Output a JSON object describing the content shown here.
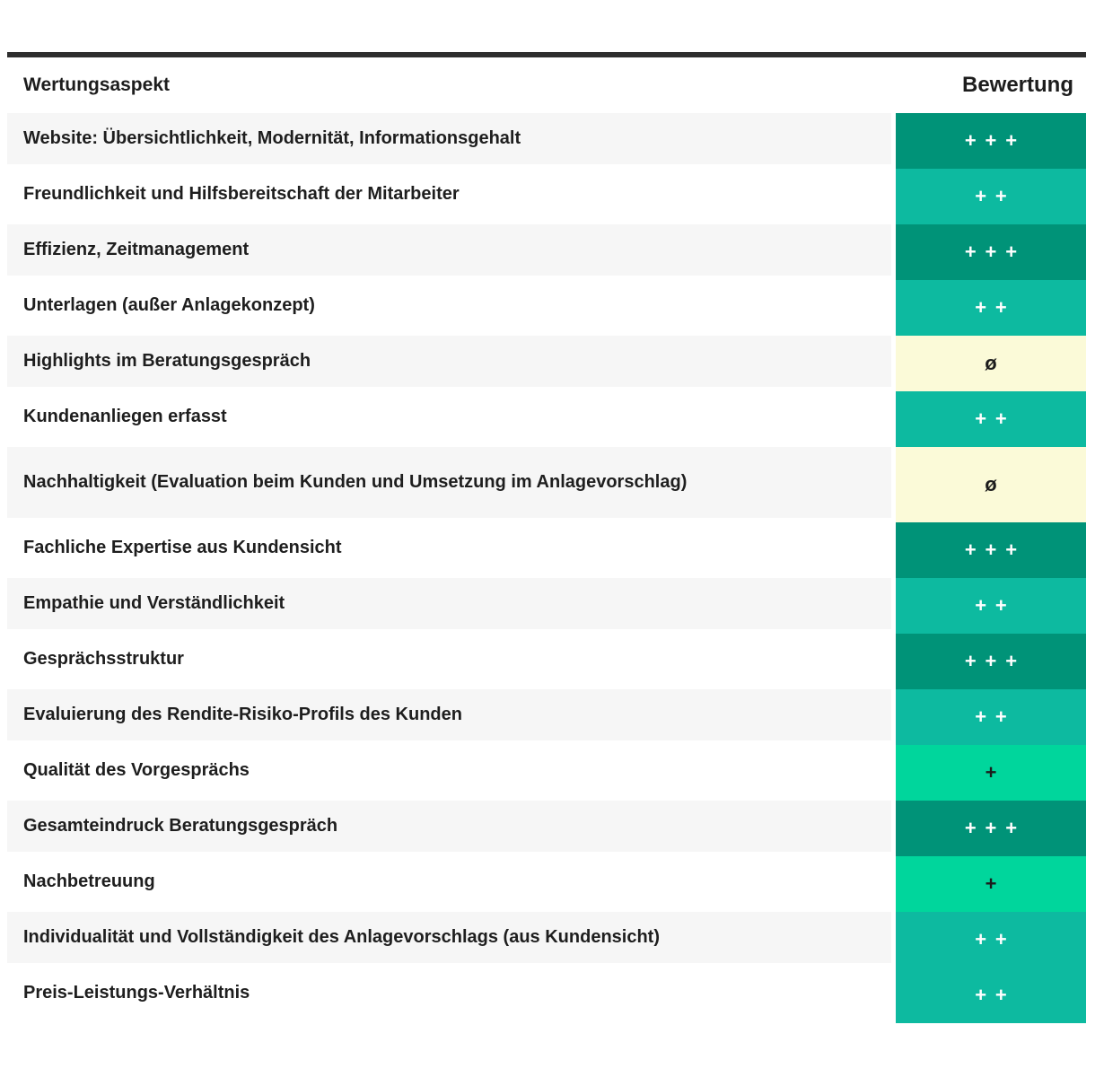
{
  "chart_data": {
    "type": "table",
    "title": "",
    "header": {
      "aspect": "Wertungsaspekt",
      "rating": "Bewertung"
    },
    "rating_scale": [
      "+++",
      "++",
      "+",
      "ø"
    ],
    "level_colors": {
      "+++": "#009378",
      "++": "#0dbaa0",
      "+": "#00d69c",
      "ø": "#fbfad8"
    },
    "text_colors": {
      "on_dark": "#ffffff",
      "on_light": "#1c1c1c"
    },
    "rows": [
      {
        "aspect": "Website: Übersichtlichkeit, Modernität, Informationsgehalt",
        "rating": "+++"
      },
      {
        "aspect": "Freundlichkeit und Hilfsbereitschaft der Mitarbeiter",
        "rating": "++"
      },
      {
        "aspect": "Effizienz, Zeitmanagement",
        "rating": "+++"
      },
      {
        "aspect": "Unterlagen (außer Anlagekonzept)",
        "rating": "++"
      },
      {
        "aspect": "Highlights im Beratungsgespräch",
        "rating": "ø"
      },
      {
        "aspect": "Kundenanliegen erfasst",
        "rating": "++"
      },
      {
        "aspect": "Nachhaltigkeit (Evaluation beim Kunden und Umsetzung im Anlagevorschlag)",
        "rating": "ø"
      },
      {
        "aspect": "Fachliche Expertise aus Kundensicht",
        "rating": "+++"
      },
      {
        "aspect": "Empathie und Verständlichkeit",
        "rating": "++"
      },
      {
        "aspect": "Gesprächsstruktur",
        "rating": "+++"
      },
      {
        "aspect": "Evaluierung des Rendite-Risiko-Profils des Kunden",
        "rating": "++"
      },
      {
        "aspect": "Qualität des Vorgesprächs",
        "rating": "+"
      },
      {
        "aspect": "Gesamteindruck Beratungsgespräch",
        "rating": "+++"
      },
      {
        "aspect": "Nachbetreuung",
        "rating": "+"
      },
      {
        "aspect": "Individualität und Vollständigkeit des Anlagevorschlags (aus Kundensicht)",
        "rating": "++"
      },
      {
        "aspect": "Preis-Leistungs-Verhältnis",
        "rating": "++"
      }
    ]
  }
}
